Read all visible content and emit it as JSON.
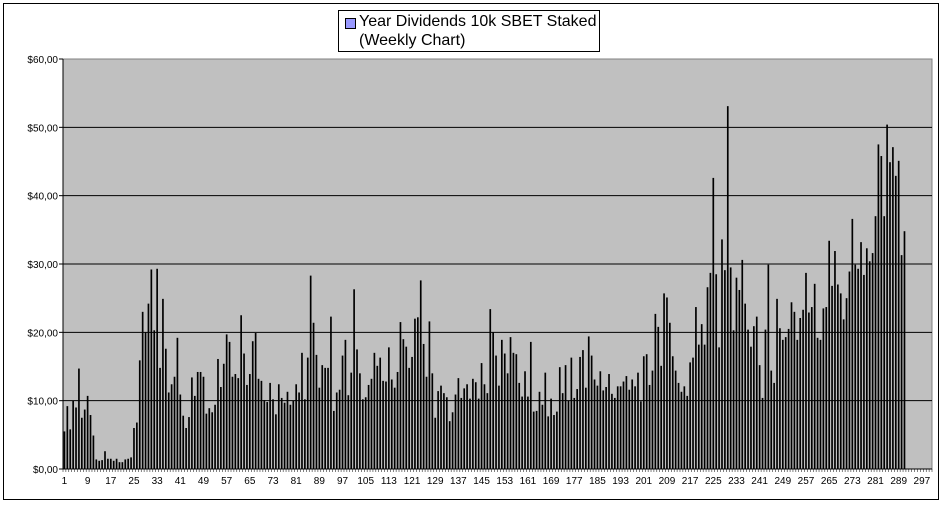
{
  "chart_data": {
    "type": "bar",
    "title": "",
    "xlabel": "",
    "ylabel": "",
    "ylim": [
      0,
      60
    ],
    "grid": true,
    "legend_placement": "top-center",
    "legend": {
      "label": "Year Dividends 10k SBET Staked",
      "sublabel": "(Weekly Chart)"
    },
    "y_ticks": [
      "$0,00",
      "$10,00",
      "$20,00",
      "$30,00",
      "$40,00",
      "$50,00",
      "$60,00"
    ],
    "x_ticks": [
      "1",
      "9",
      "17",
      "25",
      "33",
      "41",
      "49",
      "57",
      "65",
      "73",
      "81",
      "89",
      "97",
      "105",
      "113",
      "121",
      "129",
      "137",
      "145",
      "153",
      "161",
      "169",
      "177",
      "185",
      "193",
      "201",
      "209",
      "217",
      "225",
      "233",
      "241",
      "249",
      "257",
      "265",
      "273",
      "281",
      "289",
      "297"
    ],
    "x_count": 300,
    "colors": {
      "plot_bg": "#c0c0c0",
      "bar": "#000000",
      "legend_key": "#9999ff",
      "grid": "#000000"
    },
    "series": [
      {
        "values": [
          5.5,
          9.2,
          5.8,
          10,
          9,
          14.7,
          7.5,
          8.7,
          10.7,
          7.9,
          4.9,
          1.4,
          1.2,
          1.3,
          2.6,
          1.5,
          1.5,
          1.2,
          1.5,
          1,
          1,
          1.4,
          1.5,
          1.7,
          6,
          6.8,
          15.9,
          23,
          20,
          24.2,
          29.2,
          20.3,
          29.3,
          14.8,
          24.9,
          17.6,
          11.2,
          12.4,
          13.5,
          19.2,
          10.9,
          7.8,
          6,
          7.6,
          13.4,
          10.7,
          14.2,
          14.2,
          13.5,
          8.1,
          8.9,
          8.3,
          9.4,
          16.1,
          12,
          15.4,
          19.7,
          18.6,
          13.5,
          13.9,
          13.3,
          22.5,
          16.9,
          12.3,
          13.9,
          18.7,
          19.9,
          13.2,
          12.9,
          10.1,
          9.8,
          12.6,
          10.2,
          8,
          12.4,
          10.4,
          9.7,
          11.3,
          9.4,
          10,
          12.4,
          11.2,
          17,
          10.2,
          16.3,
          28.3,
          21.4,
          16.7,
          11.9,
          15.2,
          14.8,
          14.8,
          22.3,
          8.5,
          11.2,
          11.6,
          16.6,
          18.9,
          10.8,
          14.1,
          26.3,
          17.5,
          14,
          10.2,
          10.5,
          12.3,
          13.2,
          17,
          15.1,
          16.3,
          12.9,
          12.8,
          17.8,
          13.1,
          11.9,
          14.2,
          21.5,
          19,
          17.9,
          14.8,
          16.4,
          22,
          22.2,
          27.6,
          18.3,
          13.5,
          21.6,
          14,
          7.5,
          11.4,
          12.2,
          11.1,
          10.5,
          7,
          8.3,
          10.9,
          13.3,
          10.4,
          11.8,
          12.4,
          10.3,
          13.2,
          12.7,
          10.3,
          15.5,
          12.4,
          11.1,
          23.4,
          20,
          16.6,
          12.2,
          18.9,
          16.9,
          14,
          19.3,
          17,
          16.8,
          12.6,
          10.6,
          14.3,
          10.6,
          18.6,
          8.4,
          8.5,
          11.3,
          9.4,
          14.1,
          7.7,
          10.3,
          7.9,
          8.4,
          14.9,
          11.1,
          15.2,
          10,
          16.3,
          10.4,
          11.7,
          16.4,
          17.4,
          11.9,
          19.4,
          16.6,
          13.1,
          12.2,
          14.3,
          11.5,
          12,
          13.9,
          11,
          10.4,
          12.1,
          12.1,
          12.8,
          13.6,
          11.6,
          13.1,
          12.1,
          14.1,
          9.9,
          16.5,
          16.8,
          12.3,
          14.4,
          22.7,
          20.8,
          15.1,
          25.7,
          25.1,
          21.4,
          16.5,
          14.4,
          12.6,
          11.3,
          12.1,
          10.7,
          15.6,
          16.3,
          23.7,
          18.2,
          21.2,
          18.2,
          26.6,
          28.7,
          42.6,
          28.5,
          17.8,
          33.6,
          29.1,
          53.1,
          29.5,
          20.3,
          28,
          26.2,
          30.6,
          24.2,
          20.4,
          17.9,
          20.9,
          22.3,
          15.2,
          10.4,
          20.4,
          29.9,
          14.4,
          12.6,
          24.9,
          20.6,
          18.9,
          19.3,
          20.5,
          24.4,
          23,
          18.9,
          22.1,
          23.3,
          28.7,
          22.9,
          23.7,
          27.1,
          19.2,
          18.9,
          23.5,
          23.7,
          33.4,
          26.8,
          31.9,
          27,
          25.7,
          21.9,
          25,
          28.9,
          36.6,
          29.9,
          29.3,
          33.2,
          28.4,
          32.3,
          30.4,
          31.6,
          37,
          47.5,
          45.8,
          37,
          50.4,
          44.9,
          47.1,
          42.9,
          45.1,
          31.3,
          34.8,
          0,
          0,
          0,
          0,
          0,
          0,
          0,
          0,
          0,
          0,
          0,
          0,
          0
        ]
      }
    ]
  }
}
